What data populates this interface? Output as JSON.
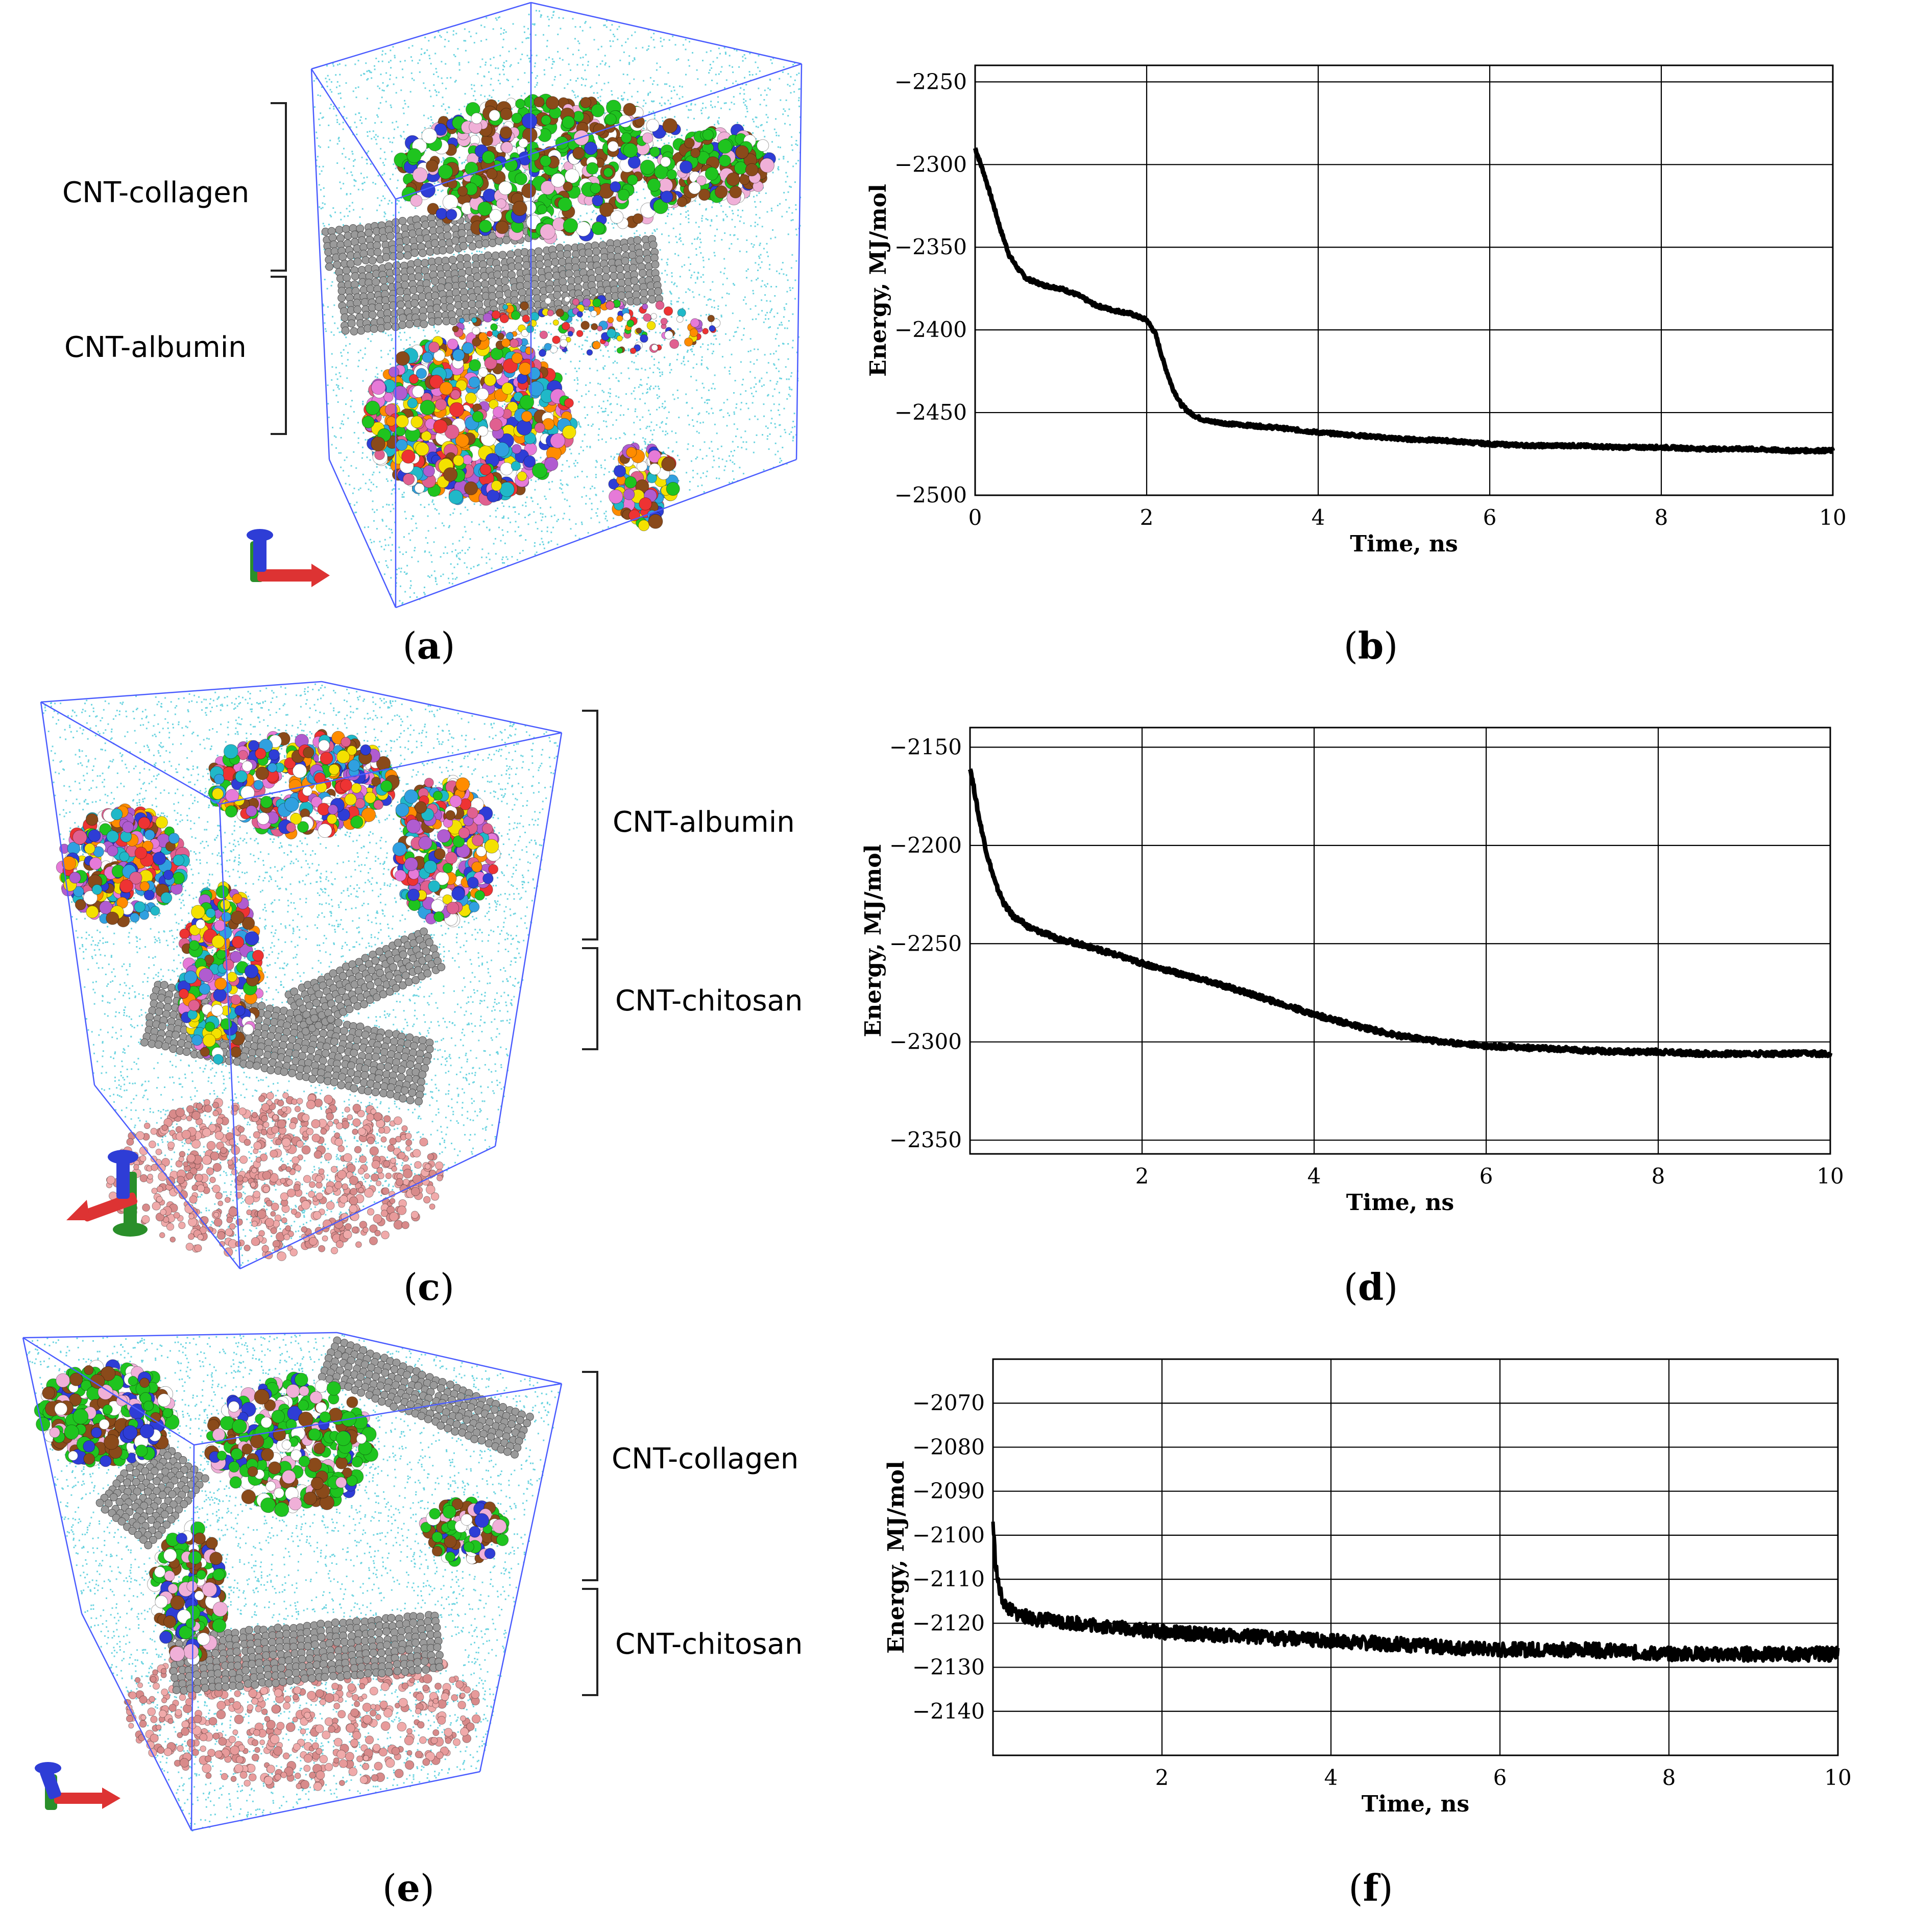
{
  "panels": {
    "a": {
      "caption_letter": "a",
      "brackets": [
        {
          "label": "CNT-collagen"
        },
        {
          "label": "CNT-albumin"
        }
      ]
    },
    "c": {
      "caption_letter": "c",
      "brackets": [
        {
          "label": "CNT-albumin"
        },
        {
          "label": "CNT-chitosan"
        }
      ]
    },
    "e": {
      "caption_letter": "e",
      "brackets": [
        {
          "label": "CNT-collagen"
        },
        {
          "label": "CNT-chitosan"
        }
      ]
    },
    "b": {
      "caption_letter": "b"
    },
    "d": {
      "caption_letter": "d"
    },
    "f": {
      "caption_letter": "f"
    }
  },
  "colors": {
    "water": "#39c6d6",
    "cnt": "#9a9a9a",
    "chitosan": "#e79a9a",
    "box": "#4a5cff",
    "collagen_green": "#1fc41f",
    "collagen_brown": "#8a4a1a",
    "line": "#000000"
  },
  "chart_data": [
    {
      "id": "b",
      "type": "line",
      "title": "",
      "xlabel": "Time, ns",
      "ylabel": "Energy, MJ/mol",
      "xlim": [
        0,
        10
      ],
      "ylim": [
        -2500,
        -2240
      ],
      "xticks": [
        0,
        2,
        4,
        6,
        8,
        10
      ],
      "yticks": [
        -2250,
        -2300,
        -2350,
        -2400,
        -2450,
        -2500
      ],
      "ytick_labels": [
        "−2250",
        "−2300",
        "−2350",
        "−2400",
        "−2450",
        "−2500"
      ],
      "grid": true,
      "series": [
        {
          "name": "Energy",
          "x": [
            0,
            0.1,
            0.2,
            0.3,
            0.4,
            0.5,
            0.6,
            0.8,
            1.0,
            1.2,
            1.4,
            1.6,
            1.8,
            2.0,
            2.1,
            2.2,
            2.3,
            2.4,
            2.5,
            2.6,
            2.7,
            3.0,
            3.5,
            4.0,
            4.5,
            5.0,
            5.5,
            6.0,
            6.5,
            7.0,
            7.5,
            8.0,
            8.5,
            9.0,
            9.5,
            10.0
          ],
          "y": [
            -2290,
            -2305,
            -2322,
            -2340,
            -2355,
            -2363,
            -2369,
            -2373,
            -2375,
            -2379,
            -2385,
            -2388,
            -2390,
            -2394,
            -2402,
            -2420,
            -2435,
            -2445,
            -2450,
            -2453,
            -2455,
            -2457,
            -2459,
            -2462,
            -2464,
            -2466,
            -2467,
            -2469,
            -2470,
            -2470,
            -2471,
            -2471,
            -2472,
            -2472,
            -2473,
            -2473
          ]
        }
      ]
    },
    {
      "id": "d",
      "type": "line",
      "title": "",
      "xlabel": "Time, ns",
      "ylabel": "Energy, MJ/mol",
      "xlim": [
        0,
        10
      ],
      "ylim": [
        -2357,
        -2140
      ],
      "xticks": [
        2,
        4,
        6,
        8,
        10
      ],
      "yticks": [
        -2150,
        -2200,
        -2250,
        -2300,
        -2350
      ],
      "ytick_labels": [
        "−2150",
        "−2200",
        "−2250",
        "−2300",
        "−2350"
      ],
      "grid": true,
      "series": [
        {
          "name": "Energy",
          "x": [
            0,
            0.05,
            0.1,
            0.2,
            0.3,
            0.4,
            0.5,
            0.7,
            1.0,
            1.5,
            2.0,
            2.5,
            3.0,
            3.5,
            4.0,
            4.5,
            5.0,
            5.5,
            6.0,
            6.5,
            7.0,
            7.5,
            8.0,
            8.5,
            9.0,
            9.5,
            10.0
          ],
          "y": [
            -2160,
            -2172,
            -2185,
            -2205,
            -2220,
            -2230,
            -2236,
            -2242,
            -2247,
            -2253,
            -2260,
            -2266,
            -2272,
            -2279,
            -2286,
            -2292,
            -2297,
            -2300,
            -2302,
            -2303,
            -2304,
            -2305,
            -2305,
            -2306,
            -2306,
            -2306,
            -2306
          ]
        }
      ]
    },
    {
      "id": "f",
      "type": "line",
      "title": "",
      "xlabel": "Time, ns",
      "ylabel": "Energy, MJ/mol",
      "xlim": [
        0,
        10
      ],
      "ylim": [
        -2150,
        -2060
      ],
      "xticks": [
        2,
        4,
        6,
        8,
        10
      ],
      "yticks": [
        -2070,
        -2080,
        -2090,
        -2100,
        -2110,
        -2120,
        -2130,
        -2140
      ],
      "ytick_labels": [
        "−2070",
        "−2080",
        "−2090",
        "−2100",
        "−2110",
        "−2120",
        "−2130",
        "−2140"
      ],
      "grid": true,
      "series": [
        {
          "name": "Energy",
          "x": [
            0,
            0.03,
            0.06,
            0.1,
            0.15,
            0.2,
            0.3,
            0.5,
            1.0,
            1.5,
            2.0,
            3.0,
            4.0,
            5.0,
            6.0,
            7.0,
            8.0,
            9.0,
            10.0
          ],
          "y": [
            -2097,
            -2106,
            -2111,
            -2114,
            -2116,
            -2117,
            -2118,
            -2119,
            -2120,
            -2121,
            -2122,
            -2123,
            -2124,
            -2125,
            -2126,
            -2126,
            -2127,
            -2127,
            -2127
          ]
        }
      ]
    }
  ]
}
